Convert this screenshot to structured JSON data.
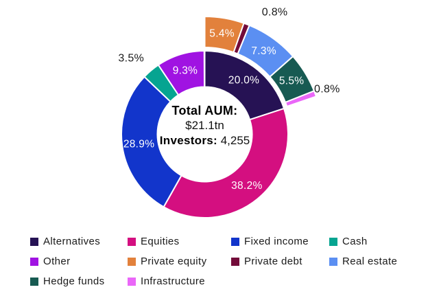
{
  "chart_data": {
    "type": "donut",
    "title": "",
    "legend_position": "bottom",
    "center": {
      "title": "Total AUM:",
      "aum": "$21.1tn",
      "investors_label": "Investors:",
      "investors_value": "4,255"
    },
    "main_ring": {
      "start_angle_deg": 0,
      "series": [
        {
          "name": "Alternatives",
          "value": 20.0,
          "pct_label": "20.0%",
          "color": "#261254",
          "label_color": "#ffffff",
          "label_placement": "inside"
        },
        {
          "name": "Equities",
          "value": 38.2,
          "pct_label": "38.2%",
          "color": "#d40f80",
          "label_color": "#ffffff",
          "label_placement": "inside"
        },
        {
          "name": "Fixed income",
          "value": 28.9,
          "pct_label": "28.9%",
          "color": "#1235cb",
          "label_color": "#ffffff",
          "label_placement": "inside"
        },
        {
          "name": "Cash",
          "value": 3.5,
          "pct_label": "3.5%",
          "color": "#06a491",
          "label_color": "#1a1a1a",
          "label_placement": "outside"
        },
        {
          "name": "Other",
          "value": 9.3,
          "pct_label": "9.3%",
          "color": "#a013e2",
          "label_color": "#ffffff",
          "label_placement": "inside"
        }
      ]
    },
    "breakout_ring": {
      "parent": "Alternatives",
      "start_angle_deg": 0,
      "series": [
        {
          "name": "Private equity",
          "value": 5.4,
          "pct_label": "5.4%",
          "color": "#e2813c",
          "label_color": "#ffffff",
          "label_placement": "inside"
        },
        {
          "name": "Private debt",
          "value": 0.8,
          "pct_label": "0.8%",
          "color": "#730c3a",
          "label_color": "#1a1a1a",
          "label_placement": "outside"
        },
        {
          "name": "Real estate",
          "value": 7.3,
          "pct_label": "7.3%",
          "color": "#5b8ff2",
          "label_color": "#ffffff",
          "label_placement": "inside"
        },
        {
          "name": "Hedge funds",
          "value": 5.5,
          "pct_label": "5.5%",
          "color": "#175a52",
          "label_color": "#ffffff",
          "label_placement": "inside"
        },
        {
          "name": "Infrastructure",
          "value": 0.8,
          "pct_label": "0.8%",
          "color": "#ea67f8",
          "label_color": "#1a1a1a",
          "label_placement": "outside"
        }
      ]
    },
    "legend_rows": [
      [
        {
          "label": "Alternatives",
          "color": "#261254"
        },
        {
          "label": "Equities",
          "color": "#d40f80"
        },
        {
          "label": "Fixed income",
          "color": "#1235cb"
        },
        {
          "label": "Cash",
          "color": "#06a491"
        }
      ],
      [
        {
          "label": "Other",
          "color": "#a013e2"
        },
        {
          "label": "Private equity",
          "color": "#e2813c"
        },
        {
          "label": "Private debt",
          "color": "#730c3a"
        },
        {
          "label": "Real estate",
          "color": "#5b8ff2"
        }
      ],
      [
        {
          "label": "Hedge funds",
          "color": "#175a52"
        },
        {
          "label": "Infrastructure",
          "color": "#ea67f8"
        }
      ]
    ]
  }
}
